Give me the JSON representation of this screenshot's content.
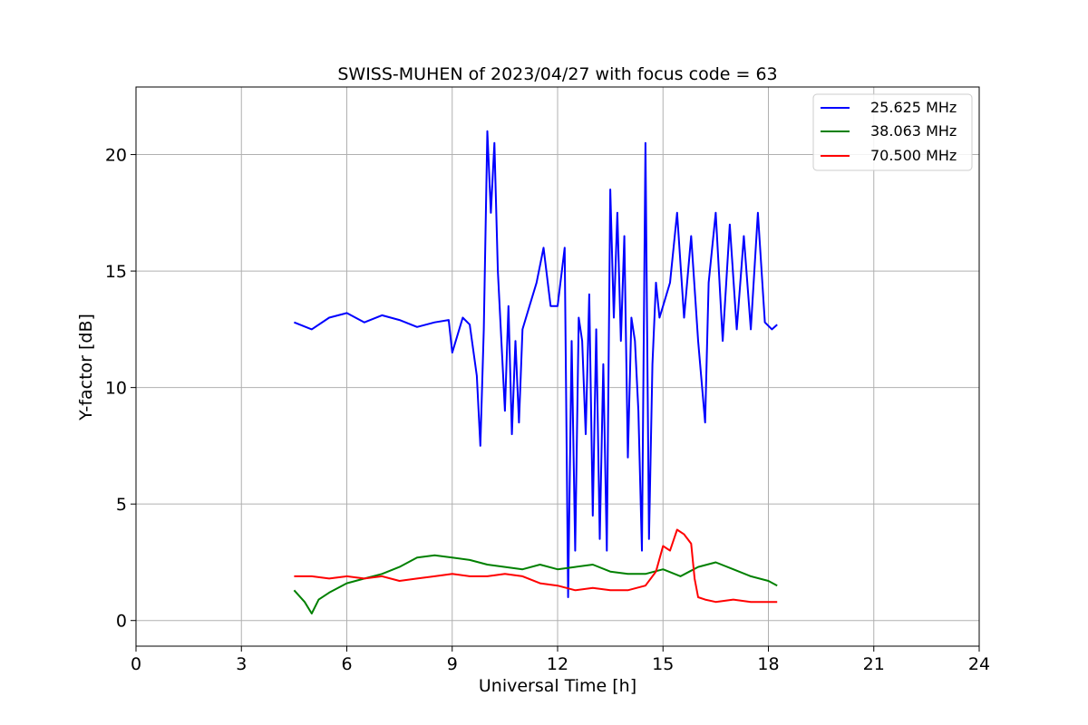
{
  "chart_data": {
    "type": "line",
    "title": "SWISS-MUHEN of 2023/04/27 with focus code = 63",
    "xlabel": "Universal Time [h]",
    "ylabel": "Y-factor [dB]",
    "xlim": [
      0,
      24
    ],
    "ylim": [
      -1.1,
      22.9
    ],
    "xticks": [
      0,
      3,
      6,
      9,
      12,
      15,
      18,
      21,
      24
    ],
    "yticks": [
      0,
      5,
      10,
      15,
      20
    ],
    "grid": true,
    "legend_position": "top-right",
    "series": [
      {
        "name": "25.625 MHz",
        "color": "#0000ff",
        "x": [
          4.5,
          5.0,
          5.5,
          6.0,
          6.5,
          7.0,
          7.5,
          8.0,
          8.5,
          8.9,
          9.0,
          9.3,
          9.5,
          9.7,
          9.8,
          9.9,
          10.0,
          10.1,
          10.2,
          10.3,
          10.4,
          10.5,
          10.6,
          10.7,
          10.8,
          10.9,
          11.0,
          11.2,
          11.4,
          11.6,
          11.8,
          12.0,
          12.2,
          12.3,
          12.4,
          12.5,
          12.6,
          12.7,
          12.8,
          12.9,
          13.0,
          13.1,
          13.2,
          13.3,
          13.4,
          13.5,
          13.6,
          13.7,
          13.8,
          13.9,
          14.0,
          14.1,
          14.2,
          14.3,
          14.4,
          14.5,
          14.6,
          14.7,
          14.8,
          14.9,
          15.0,
          15.2,
          15.4,
          15.6,
          15.8,
          16.0,
          16.2,
          16.3,
          16.5,
          16.7,
          16.9,
          17.1,
          17.3,
          17.5,
          17.7,
          17.9,
          18.1,
          18.25
        ],
        "y": [
          12.8,
          12.5,
          13.0,
          13.2,
          12.8,
          13.1,
          12.9,
          12.6,
          12.8,
          12.9,
          11.5,
          13.0,
          12.7,
          10.5,
          7.5,
          12.5,
          21.0,
          17.5,
          20.5,
          15.0,
          12.0,
          9.0,
          13.5,
          8.0,
          12.0,
          8.5,
          12.5,
          13.5,
          14.5,
          16.0,
          13.5,
          13.5,
          16.0,
          1.0,
          12.0,
          3.0,
          13.0,
          12.0,
          8.0,
          14.0,
          4.5,
          12.5,
          3.5,
          11.0,
          3.0,
          18.5,
          13.0,
          17.5,
          12.0,
          16.5,
          7.0,
          13.0,
          12.0,
          9.0,
          3.0,
          20.5,
          3.5,
          11.0,
          14.5,
          13.0,
          13.5,
          14.5,
          17.5,
          13.0,
          16.5,
          12.0,
          8.5,
          14.5,
          17.5,
          12.0,
          17.0,
          12.5,
          16.5,
          12.5,
          17.5,
          12.8,
          12.5,
          12.7
        ]
      },
      {
        "name": "38.063 MHz",
        "color": "#008000",
        "x": [
          4.5,
          4.8,
          5.0,
          5.2,
          5.5,
          6.0,
          6.5,
          7.0,
          7.5,
          8.0,
          8.5,
          9.0,
          9.5,
          10.0,
          10.5,
          11.0,
          11.5,
          12.0,
          12.5,
          13.0,
          13.5,
          14.0,
          14.5,
          15.0,
          15.5,
          16.0,
          16.5,
          17.0,
          17.5,
          18.0,
          18.25
        ],
        "y": [
          1.3,
          0.8,
          0.3,
          0.9,
          1.2,
          1.6,
          1.8,
          2.0,
          2.3,
          2.7,
          2.8,
          2.7,
          2.6,
          2.4,
          2.3,
          2.2,
          2.4,
          2.2,
          2.3,
          2.4,
          2.1,
          2.0,
          2.0,
          2.2,
          1.9,
          2.3,
          2.5,
          2.2,
          1.9,
          1.7,
          1.5
        ]
      },
      {
        "name": "70.500 MHz",
        "color": "#ff0000",
        "x": [
          4.5,
          5.0,
          5.5,
          6.0,
          6.5,
          7.0,
          7.5,
          8.0,
          8.5,
          9.0,
          9.5,
          10.0,
          10.5,
          11.0,
          11.5,
          12.0,
          12.5,
          13.0,
          13.5,
          14.0,
          14.5,
          14.8,
          15.0,
          15.2,
          15.4,
          15.6,
          15.8,
          15.9,
          16.0,
          16.2,
          16.5,
          17.0,
          17.5,
          18.0,
          18.25
        ],
        "y": [
          1.9,
          1.9,
          1.8,
          1.9,
          1.8,
          1.9,
          1.7,
          1.8,
          1.9,
          2.0,
          1.9,
          1.9,
          2.0,
          1.9,
          1.6,
          1.5,
          1.3,
          1.4,
          1.3,
          1.3,
          1.5,
          2.1,
          3.2,
          3.0,
          3.9,
          3.7,
          3.3,
          1.8,
          1.0,
          0.9,
          0.8,
          0.9,
          0.8,
          0.8,
          0.8
        ]
      }
    ]
  }
}
